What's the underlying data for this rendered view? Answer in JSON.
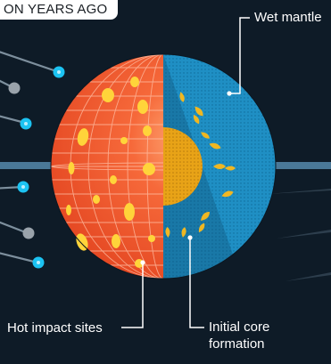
{
  "header": {
    "title": "ON YEARS AGO"
  },
  "labels": {
    "wet_mantle": "Wet mantle",
    "hot_impact_sites": "Hot impact sites",
    "initial_core_line1": "Initial core",
    "initial_core_line2": "formation"
  },
  "colors": {
    "background": "#0e1b27",
    "hot_surface": "#f2552c",
    "hot_spot": "#ffd43a",
    "mantle": "#1f8fc4",
    "core": "#e8a317",
    "accent_cyan": "#1cc3f2",
    "accent_grey": "#9aa3ab",
    "stripe": "#4a7897"
  }
}
